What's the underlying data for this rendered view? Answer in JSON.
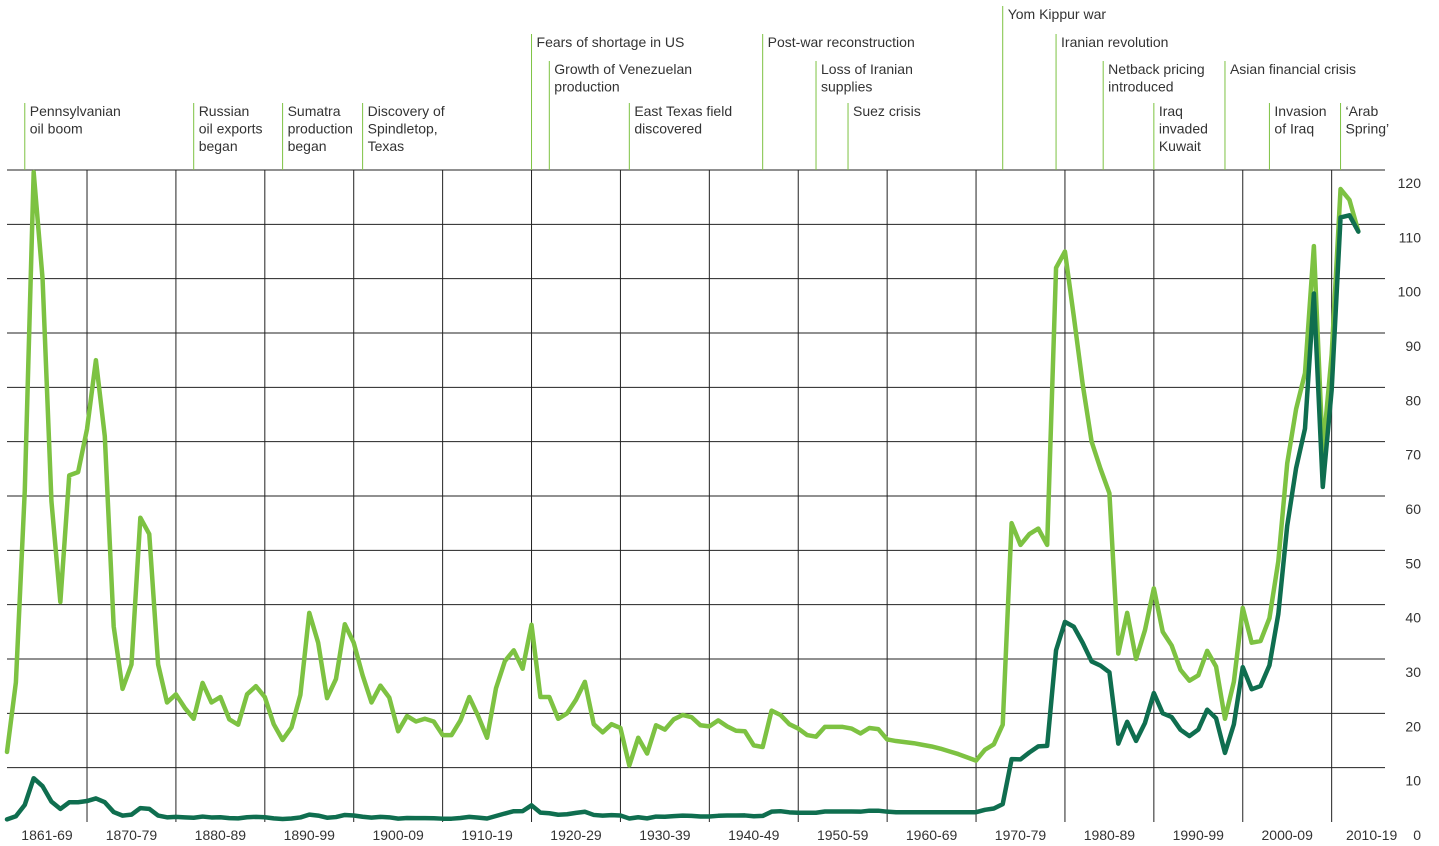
{
  "chart_data": {
    "type": "line",
    "x": [
      1861,
      1862,
      1863,
      1864,
      1865,
      1866,
      1867,
      1868,
      1869,
      1870,
      1871,
      1872,
      1873,
      1874,
      1875,
      1876,
      1877,
      1878,
      1879,
      1880,
      1881,
      1882,
      1883,
      1884,
      1885,
      1886,
      1887,
      1888,
      1889,
      1890,
      1891,
      1892,
      1893,
      1894,
      1895,
      1896,
      1897,
      1898,
      1899,
      1900,
      1901,
      1902,
      1903,
      1904,
      1905,
      1906,
      1907,
      1908,
      1909,
      1910,
      1911,
      1912,
      1913,
      1914,
      1915,
      1916,
      1917,
      1918,
      1919,
      1920,
      1921,
      1922,
      1923,
      1924,
      1925,
      1926,
      1927,
      1928,
      1929,
      1930,
      1931,
      1932,
      1933,
      1934,
      1935,
      1936,
      1937,
      1938,
      1939,
      1940,
      1941,
      1942,
      1943,
      1944,
      1945,
      1946,
      1947,
      1948,
      1949,
      1950,
      1951,
      1952,
      1953,
      1954,
      1955,
      1956,
      1957,
      1958,
      1959,
      1960,
      1961,
      1962,
      1963,
      1964,
      1965,
      1966,
      1967,
      1968,
      1969,
      1970,
      1971,
      1972,
      1973,
      1974,
      1975,
      1976,
      1977,
      1978,
      1979,
      1980,
      1981,
      1982,
      1983,
      1984,
      1985,
      1986,
      1987,
      1988,
      1989,
      1990,
      1991,
      1992,
      1993,
      1994,
      1995,
      1996,
      1997,
      1998,
      1999,
      2000,
      2001,
      2002,
      2003,
      2004,
      2005,
      2006,
      2007,
      2008,
      2009,
      2010,
      2011,
      2012,
      2013
    ],
    "series": [
      {
        "color": "#7dc242",
        "values": [
          12.9,
          25.7,
          61,
          119.6,
          100,
          59,
          40.5,
          63.8,
          64.4,
          72.3,
          85,
          71,
          36,
          24.5,
          29,
          56,
          53,
          29,
          22,
          23.5,
          21,
          19,
          25.6,
          22,
          23,
          18.9,
          17.9,
          23.5,
          25,
          23,
          18,
          15.1,
          17.4,
          23.4,
          38.5,
          33,
          22.8,
          26.3,
          36.4,
          33,
          27,
          22,
          25.1,
          22.9,
          16.7,
          19.5,
          18.5,
          19,
          18.5,
          16,
          16,
          18.7,
          23,
          19.5,
          15.5,
          24.6,
          29.6,
          31.6,
          28.2,
          36.3,
          23,
          23,
          19,
          20,
          22.5,
          25.8,
          18,
          16.5,
          18,
          17.3,
          10.4,
          15.5,
          12.6,
          17.8,
          17,
          18.9,
          19.7,
          19.3,
          17.8,
          17.6,
          18.7,
          17.6,
          16.8,
          16.7,
          14.1,
          13.8,
          20.5,
          19.7,
          18,
          17.2,
          16,
          15.7,
          17.5,
          17.5,
          17.5,
          17.2,
          16.3,
          17.3,
          17.1,
          15.2,
          14.9,
          14.7,
          14.5,
          14.2,
          13.9,
          13.5,
          13,
          12.5,
          11.9,
          11.3,
          13.3,
          14.3,
          17.9,
          55,
          51,
          53,
          54,
          51,
          102,
          105,
          93,
          80.5,
          70,
          65,
          60.5,
          31,
          38.5,
          30,
          35.3,
          43,
          35,
          32.5,
          28,
          26,
          27,
          31.5,
          28.6,
          19,
          25.8,
          39.4,
          33,
          33.3,
          37.5,
          48,
          66,
          76,
          82.6,
          106,
          68,
          86,
          116.5,
          114.5,
          108.7
        ]
      },
      {
        "color": "#0f6e4f",
        "values": [
          0.49,
          1.05,
          3.15,
          8.06,
          6.59,
          3.74,
          2.41,
          3.63,
          3.64,
          3.86,
          4.34,
          3.64,
          1.83,
          1.17,
          1.35,
          2.56,
          2.42,
          1.19,
          0.86,
          0.95,
          0.86,
          0.78,
          1.0,
          0.84,
          0.88,
          0.71,
          0.67,
          0.88,
          0.94,
          0.87,
          0.67,
          0.56,
          0.64,
          0.84,
          1.36,
          1.18,
          0.79,
          0.91,
          1.29,
          1.19,
          0.96,
          0.8,
          0.94,
          0.86,
          0.62,
          0.73,
          0.72,
          0.72,
          0.7,
          0.61,
          0.61,
          0.74,
          0.95,
          0.81,
          0.64,
          1.1,
          1.56,
          1.98,
          2.01,
          3.07,
          1.73,
          1.61,
          1.34,
          1.43,
          1.68,
          1.88,
          1.3,
          1.17,
          1.27,
          1.19,
          0.65,
          0.87,
          0.67,
          1.0,
          0.97,
          1.09,
          1.18,
          1.13,
          1.02,
          1.02,
          1.14,
          1.19,
          1.2,
          1.21,
          1.05,
          1.12,
          1.9,
          1.99,
          1.78,
          1.71,
          1.71,
          1.71,
          1.93,
          1.93,
          1.93,
          1.93,
          1.9,
          2.08,
          2.08,
          1.9,
          1.8,
          1.8,
          1.8,
          1.8,
          1.8,
          1.8,
          1.8,
          1.8,
          1.8,
          1.8,
          2.24,
          2.48,
          3.29,
          11.58,
          11.53,
          12.8,
          13.92,
          14.02,
          31.61,
          36.83,
          35.93,
          32.97,
          29.55,
          28.78,
          27.56,
          14.43,
          18.44,
          14.92,
          18.23,
          23.73,
          20.0,
          19.32,
          16.97,
          15.82,
          17.02,
          20.67,
          19.09,
          12.72,
          17.97,
          28.5,
          24.44,
          25.02,
          28.83,
          38.27,
          54.52,
          65.14,
          72.39,
          97.26,
          61.67,
          79.5,
          111.26,
          111.67,
          108.66
        ]
      }
    ],
    "xlim": [
      1861,
      2016
    ],
    "xticks": [
      {
        "value": 1861,
        "label": "1861-69"
      },
      {
        "value": 1870,
        "label": "1870-79"
      },
      {
        "value": 1880,
        "label": "1880-89"
      },
      {
        "value": 1890,
        "label": "1890-99"
      },
      {
        "value": 1900,
        "label": "1900-09"
      },
      {
        "value": 1910,
        "label": "1910-19"
      },
      {
        "value": 1920,
        "label": "1920-29"
      },
      {
        "value": 1930,
        "label": "1930-39"
      },
      {
        "value": 1940,
        "label": "1940-49"
      },
      {
        "value": 1950,
        "label": "1950-59"
      },
      {
        "value": 1960,
        "label": "1960-69"
      },
      {
        "value": 1970,
        "label": "1970-79"
      },
      {
        "value": 1980,
        "label": "1980-89"
      },
      {
        "value": 1990,
        "label": "1990-99"
      },
      {
        "value": 2000,
        "label": "2000-09"
      },
      {
        "value": 2010,
        "label": "2010-19"
      }
    ],
    "ylim": [
      0,
      120
    ],
    "yticks": [
      0,
      10,
      20,
      30,
      40,
      50,
      60,
      70,
      80,
      90,
      100,
      110,
      120
    ],
    "grid": true,
    "annotations": [
      {
        "x": 1863,
        "lines": [
          "Pennsylvanian",
          "oil boom"
        ]
      },
      {
        "x": 1882,
        "lines": [
          "Russian",
          "oil exports",
          "began"
        ]
      },
      {
        "x": 1892,
        "lines": [
          "Sumatra",
          "production",
          "began"
        ]
      },
      {
        "x": 1901,
        "lines": [
          "Discovery of",
          "Spindletop,",
          "Texas"
        ]
      },
      {
        "x": 1920,
        "lines": [
          "Fears of shortage in US"
        ]
      },
      {
        "x": 1922,
        "lines": [
          "Growth of Venezuelan",
          "production"
        ]
      },
      {
        "x": 1931,
        "lines": [
          "East Texas field",
          "discovered"
        ]
      },
      {
        "x": 1946,
        "lines": [
          "Post-war reconstruction"
        ]
      },
      {
        "x": 1952,
        "lines": [
          "Loss of Iranian",
          "supplies"
        ]
      },
      {
        "x": 1955.6,
        "lines": [
          "Suez crisis"
        ]
      },
      {
        "x": 1973,
        "lines": [
          "Yom Kippur war"
        ]
      },
      {
        "x": 1979,
        "lines": [
          "Iranian revolution"
        ]
      },
      {
        "x": 1984.3,
        "lines": [
          "Netback pricing",
          "introduced"
        ]
      },
      {
        "x": 1990,
        "lines": [
          "Iraq",
          "invaded",
          "Kuwait"
        ]
      },
      {
        "x": 1998,
        "lines": [
          "Asian financial crisis"
        ]
      },
      {
        "x": 2003,
        "lines": [
          "Invasion",
          "of Iraq"
        ]
      },
      {
        "x": 2011,
        "lines": [
          "‘Arab",
          "Spring’"
        ]
      }
    ]
  }
}
